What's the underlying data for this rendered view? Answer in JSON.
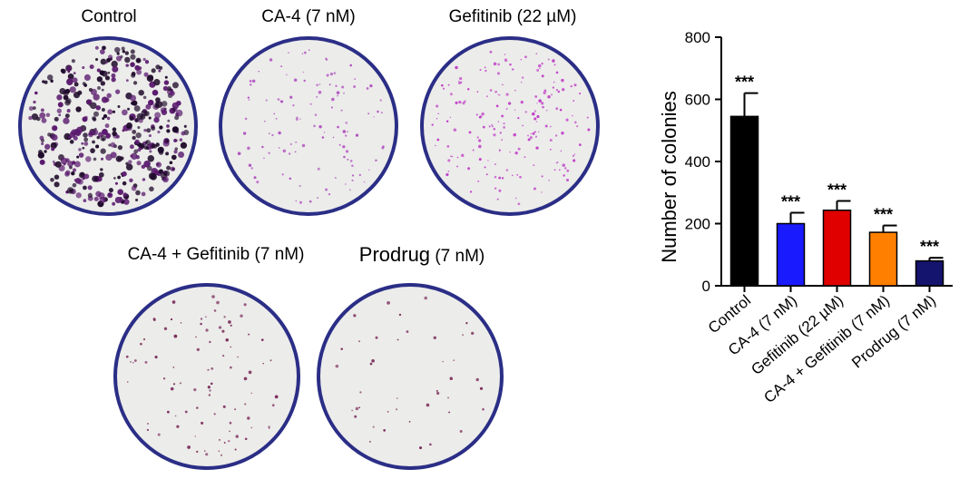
{
  "panels": [
    {
      "label": "Control",
      "colony_density": 1.0,
      "color": "#5a1a6e"
    },
    {
      "label": "CA-4 (7 nM)",
      "colony_density": 0.28,
      "color": "#b04fc0"
    },
    {
      "label": "Gefitinib (22 µM)",
      "colony_density": 0.45,
      "color": "#c03fc8"
    },
    {
      "label_main": "CA-4 + Gefitinib",
      "label_suffix": "(7 nM)",
      "colony_density": 0.22,
      "color": "#7a2a5a"
    },
    {
      "label_main": "Prodrug",
      "label_suffix": "(7 nM)",
      "colony_density": 0.1,
      "color": "#7a2a5a"
    }
  ],
  "chart_data": {
    "type": "bar",
    "categories": [
      "Control",
      "CA-4 (7 nM)",
      "Gefitinib (22 µM)",
      "CA-4 + Gefitinib (7 nM)",
      "Prodrug (7 nM)"
    ],
    "values": [
      545,
      200,
      243,
      172,
      80
    ],
    "errors": [
      75,
      35,
      30,
      22,
      10
    ],
    "colors": [
      "#000000",
      "#1a1aff",
      "#e00000",
      "#ff7f00",
      "#14146e"
    ],
    "significance": [
      "***",
      "***",
      "***",
      "***",
      "***"
    ],
    "ylabel": "Number of colonies",
    "ylim": [
      0,
      800
    ],
    "yticks": [
      0,
      200,
      400,
      600,
      800
    ]
  }
}
